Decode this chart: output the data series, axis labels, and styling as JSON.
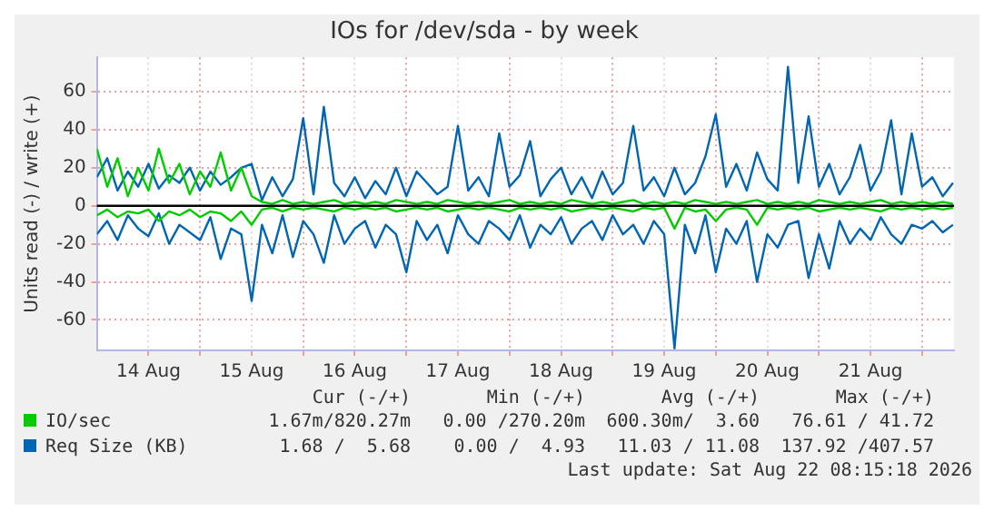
{
  "chart_data": {
    "type": "line",
    "title": "IOs for /dev/sda - by week",
    "ylabel": "Units read (-) / write (+)",
    "x": [
      "2026-08-14T00:00",
      "2026-08-14T02:24",
      "2026-08-14T04:48",
      "2026-08-14T07:12",
      "2026-08-14T09:36",
      "2026-08-14T12:00",
      "2026-08-14T14:24",
      "2026-08-14T16:48",
      "2026-08-14T19:12",
      "2026-08-14T21:36",
      "2026-08-15T00:00",
      "2026-08-15T02:24",
      "2026-08-15T04:48",
      "2026-08-15T07:12",
      "2026-08-15T09:36",
      "2026-08-15T12:00",
      "2026-08-15T14:24",
      "2026-08-15T16:48",
      "2026-08-15T19:12",
      "2026-08-15T21:36",
      "2026-08-16T00:00",
      "2026-08-16T02:24",
      "2026-08-16T04:48",
      "2026-08-16T07:12",
      "2026-08-16T09:36",
      "2026-08-16T12:00",
      "2026-08-16T14:24",
      "2026-08-16T16:48",
      "2026-08-16T19:12",
      "2026-08-16T21:36",
      "2026-08-17T00:00",
      "2026-08-17T02:24",
      "2026-08-17T04:48",
      "2026-08-17T07:12",
      "2026-08-17T09:36",
      "2026-08-17T12:00",
      "2026-08-17T14:24",
      "2026-08-17T16:48",
      "2026-08-17T19:12",
      "2026-08-17T21:36",
      "2026-08-18T00:00",
      "2026-08-18T02:24",
      "2026-08-18T04:48",
      "2026-08-18T07:12",
      "2026-08-18T09:36",
      "2026-08-18T12:00",
      "2026-08-18T14:24",
      "2026-08-18T16:48",
      "2026-08-18T19:12",
      "2026-08-18T21:36",
      "2026-08-19T00:00",
      "2026-08-19T02:24",
      "2026-08-19T04:48",
      "2026-08-19T07:12",
      "2026-08-19T09:36",
      "2026-08-19T12:00",
      "2026-08-19T14:24",
      "2026-08-19T16:48",
      "2026-08-19T19:12",
      "2026-08-19T21:36",
      "2026-08-20T00:00",
      "2026-08-20T02:24",
      "2026-08-20T04:48",
      "2026-08-20T07:12",
      "2026-08-20T09:36",
      "2026-08-20T12:00",
      "2026-08-20T14:24",
      "2026-08-20T16:48",
      "2026-08-20T19:12",
      "2026-08-20T21:36",
      "2026-08-21T00:00",
      "2026-08-21T02:24",
      "2026-08-21T04:48",
      "2026-08-21T07:12",
      "2026-08-21T09:36",
      "2026-08-21T12:00",
      "2026-08-21T14:24",
      "2026-08-21T16:48",
      "2026-08-21T19:12",
      "2026-08-21T21:36",
      "2026-08-22T00:00",
      "2026-08-22T02:24",
      "2026-08-22T04:48",
      "2026-08-22T07:12"
    ],
    "series": [
      {
        "name": "IO/sec",
        "color": "#00cc00",
        "values": [
          30,
          10,
          25,
          5,
          20,
          8,
          30,
          12,
          22,
          6,
          18,
          10,
          28,
          8,
          20,
          5,
          2,
          1,
          3,
          1,
          2,
          1,
          2,
          3,
          1,
          2,
          1,
          2,
          1,
          3,
          2,
          1,
          2,
          1,
          3,
          2,
          1,
          2,
          1,
          2,
          3,
          1,
          2,
          1,
          2,
          1,
          3,
          2,
          1,
          2,
          1,
          2,
          3,
          1,
          2,
          1,
          2,
          1,
          3,
          2,
          1,
          2,
          1,
          2,
          3,
          1,
          2,
          1,
          2,
          1,
          3,
          2,
          1,
          2,
          1,
          2,
          3,
          1,
          2,
          1,
          2,
          1,
          2,
          1
        ]
      },
      {
        "color": "#00cc00",
        "values": [
          -5,
          -2,
          -6,
          -3,
          -4,
          -2,
          -8,
          -3,
          -5,
          -2,
          -6,
          -3,
          -4,
          -8,
          -3,
          -10,
          -2,
          -1,
          -3,
          -1,
          -2,
          -1,
          -2,
          -3,
          -1,
          -2,
          -1,
          -2,
          -1,
          -3,
          -2,
          -1,
          -2,
          -1,
          -3,
          -2,
          -1,
          -2,
          -1,
          -2,
          -3,
          -1,
          -2,
          -1,
          -2,
          -1,
          -3,
          -2,
          -1,
          -2,
          -1,
          -2,
          -3,
          -1,
          -2,
          -1,
          -12,
          -1,
          -3,
          -2,
          -8,
          -2,
          -1,
          -2,
          -10,
          -1,
          -2,
          -1,
          -2,
          -1,
          -3,
          -2,
          -1,
          -2,
          -1,
          -2,
          -3,
          -1,
          -2,
          -1,
          -2,
          -1,
          -2,
          -1
        ]
      },
      {
        "name": "Req Size (KB)",
        "color": "#0066b3",
        "values": [
          15,
          25,
          8,
          18,
          10,
          22,
          9,
          16,
          12,
          20,
          8,
          18,
          11,
          15,
          20,
          22,
          3,
          15,
          5,
          14,
          46,
          6,
          52,
          12,
          5,
          15,
          4,
          13,
          6,
          20,
          5,
          18,
          12,
          6,
          10,
          42,
          8,
          15,
          5,
          38,
          10,
          16,
          34,
          5,
          14,
          20,
          6,
          15,
          4,
          18,
          6,
          12,
          42,
          8,
          15,
          5,
          20,
          6,
          12,
          26,
          48,
          10,
          22,
          8,
          28,
          14,
          8,
          73,
          12,
          47,
          10,
          22,
          6,
          15,
          32,
          8,
          18,
          45,
          6,
          38,
          10,
          15,
          5,
          12
        ]
      },
      {
        "color": "#0066b3",
        "values": [
          -15,
          -8,
          -18,
          -5,
          -12,
          -16,
          -4,
          -20,
          -10,
          -14,
          -18,
          -6,
          -28,
          -12,
          -15,
          -50,
          -10,
          -25,
          -5,
          -27,
          -8,
          -15,
          -30,
          -5,
          -20,
          -12,
          -8,
          -22,
          -10,
          -15,
          -35,
          -8,
          -18,
          -10,
          -25,
          -5,
          -15,
          -20,
          -8,
          -12,
          -18,
          -5,
          -22,
          -10,
          -15,
          -6,
          -20,
          -12,
          -8,
          -18,
          -5,
          -15,
          -10,
          -20,
          -8,
          -15,
          -75,
          -10,
          -25,
          -5,
          -35,
          -12,
          -20,
          -8,
          -40,
          -15,
          -22,
          -10,
          -8,
          -38,
          -15,
          -33,
          -8,
          -20,
          -12,
          -18,
          -6,
          -15,
          -20,
          -10,
          -12,
          -8,
          -14,
          -10
        ]
      }
    ],
    "xlim": [
      "2026-08-14T00:00",
      "2026-08-22T07:26"
    ],
    "xticks": [
      {
        "value": "2026-08-14T12:00",
        "label": "14 Aug"
      },
      {
        "value": "2026-08-15T00:00",
        "label": null
      },
      {
        "value": "2026-08-15T12:00",
        "label": "15 Aug"
      },
      {
        "value": "2026-08-16T00:00",
        "label": null
      },
      {
        "value": "2026-08-16T12:00",
        "label": "16 Aug"
      },
      {
        "value": "2026-08-17T00:00",
        "label": null
      },
      {
        "value": "2026-08-17T12:00",
        "label": "17 Aug"
      },
      {
        "value": "2026-08-18T00:00",
        "label": null
      },
      {
        "value": "2026-08-18T12:00",
        "label": "18 Aug"
      },
      {
        "value": "2026-08-19T00:00",
        "label": null
      },
      {
        "value": "2026-08-19T12:00",
        "label": "19 Aug"
      },
      {
        "value": "2026-08-20T00:00",
        "label": null
      },
      {
        "value": "2026-08-20T12:00",
        "label": "20 Aug"
      },
      {
        "value": "2026-08-21T00:00",
        "label": null
      },
      {
        "value": "2026-08-21T12:00",
        "label": "21 Aug"
      },
      {
        "value": "2026-08-22T00:00",
        "label": null
      }
    ],
    "ylim": [
      -76,
      78
    ],
    "yticks": [
      -60,
      -40,
      -20,
      0,
      20,
      40,
      60
    ],
    "grid": true,
    "legend": "bottom",
    "ref_lines": [
      {
        "axis": "y",
        "value": 0,
        "color": "#000000"
      }
    ],
    "annotations": [
      "Cur (-/+)",
      "Min (-/+)",
      "Avg (-/+)",
      "Max (-/+)",
      "1.67m/820.27m",
      "0.00 /270.20m",
      "600.30m/  3.60",
      "76.61 / 41.72",
      "1.68 /  5.68",
      "0.00 /  4.93",
      "11.03 / 11.08",
      "137.92 /407.57",
      "Last update: Sat Aug 22 08:15:18 2026"
    ]
  }
}
